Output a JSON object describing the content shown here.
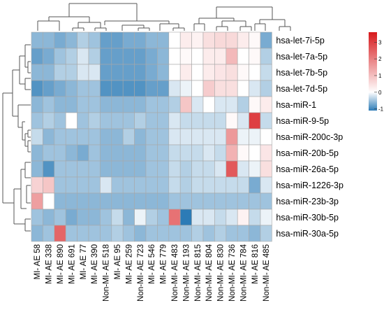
{
  "chart_data": {
    "type": "heatmap",
    "columns": [
      "MI- AE 58",
      "MI- AE 338",
      "MI- AE 890",
      "MI- AE 691",
      "MI- AE 77",
      "MI- AE 390",
      "Non-MI- AE 518",
      "MI- AE 95",
      "MI- AE 259",
      "Non-MI- AE 723",
      "MI- AE 546",
      "MI- AE 779",
      "Non-MI- AE 483",
      "Non-MI- AE 193",
      "Non-MI- AE 815",
      "Non-MI- AE 804",
      "Non-MI- AE 830",
      "Non-MI- AE 736",
      "Non-MI- AE 784",
      "MI- AE 816",
      "Non-MI- AE 485"
    ],
    "rows": [
      "hsa-let-7i-5p",
      "hsa-let-7a-5p",
      "hsa-let-7b-5p",
      "hsa-let-7d-5p",
      "hsa-miR-1",
      "hsa-miR-9-5p",
      "hsa-miR-200c-3p",
      "hsa-miR-20b-5p",
      "hsa-miR-26a-5p",
      "hsa-miR-1226-3p",
      "hsa-miR-23b-3p",
      "hsa-miR-30b-5p",
      "hsa-miR-30a-5p"
    ],
    "values": [
      [
        -0.6,
        -0.6,
        -0.7,
        -0.6,
        -0.4,
        -0.5,
        -0.8,
        -0.8,
        -0.7,
        -0.7,
        -0.6,
        -0.6,
        0.0,
        0.3,
        0.2,
        0.5,
        0.6,
        0.6,
        0.3,
        0.1,
        -0.7
      ],
      [
        -0.8,
        -0.7,
        -0.5,
        -0.4,
        -0.2,
        -0.4,
        -0.8,
        -0.8,
        -0.8,
        -0.8,
        -0.7,
        -0.6,
        0.0,
        0.1,
        0.0,
        0.3,
        0.3,
        1.1,
        0.0,
        0.1,
        -0.4
      ],
      [
        -0.6,
        -0.6,
        -0.4,
        -0.4,
        -0.2,
        -0.2,
        -0.8,
        -0.8,
        -0.8,
        -0.8,
        -0.7,
        -0.6,
        0.0,
        0.3,
        0.0,
        0.3,
        0.4,
        0.5,
        0.1,
        0.0,
        -0.3
      ],
      [
        -0.9,
        -0.8,
        -0.7,
        -0.6,
        -0.5,
        -0.5,
        -0.9,
        -0.9,
        -0.9,
        -0.9,
        -0.8,
        -0.8,
        -0.2,
        -0.1,
        0.0,
        0.8,
        0.5,
        0.5,
        0.0,
        -0.2,
        -0.4
      ],
      [
        -0.6,
        -0.5,
        -0.6,
        -0.6,
        -0.5,
        -0.5,
        -0.6,
        -0.6,
        -0.6,
        -0.6,
        -0.5,
        -0.5,
        -0.4,
        0.9,
        -0.2,
        0.0,
        -0.2,
        -0.2,
        -0.4,
        0.1,
        0.3
      ],
      [
        -0.5,
        -0.4,
        -0.5,
        0.0,
        -0.5,
        -0.4,
        -0.5,
        -0.5,
        -0.5,
        -0.4,
        -0.5,
        -0.5,
        -0.2,
        -0.3,
        -0.3,
        -0.3,
        -0.3,
        0.1,
        -0.2,
        3.0,
        -0.3
      ],
      [
        -0.3,
        -0.6,
        -0.5,
        -0.5,
        -0.5,
        -0.5,
        -0.6,
        -0.6,
        -0.4,
        -0.6,
        -0.5,
        -0.5,
        -0.2,
        -0.2,
        -0.2,
        -0.2,
        -0.2,
        1.6,
        -0.1,
        -0.1,
        0.0
      ],
      [
        -0.6,
        -0.5,
        -0.5,
        -0.6,
        -0.7,
        -0.5,
        -0.6,
        -0.6,
        -0.6,
        -0.6,
        -0.5,
        -0.5,
        -0.3,
        -0.3,
        -0.3,
        -0.2,
        -0.3,
        1.2,
        0.1,
        0.0,
        0.4
      ],
      [
        -0.6,
        -0.9,
        -0.5,
        -0.5,
        -0.5,
        -0.5,
        -0.6,
        -0.6,
        -0.6,
        -0.6,
        -0.5,
        -0.5,
        -0.3,
        -0.4,
        -0.3,
        -0.3,
        -0.2,
        2.6,
        -0.2,
        -0.1,
        0.5
      ],
      [
        0.7,
        0.9,
        -0.5,
        -0.5,
        -0.5,
        -0.5,
        -0.2,
        -0.5,
        -0.5,
        -0.5,
        -0.5,
        -0.5,
        -0.3,
        -0.4,
        -0.3,
        -0.3,
        -0.3,
        -0.3,
        -0.3,
        -0.7,
        -0.2
      ],
      [
        1.5,
        0.0,
        -0.6,
        -0.6,
        -0.6,
        -0.6,
        -0.6,
        -0.6,
        -0.6,
        -0.6,
        -0.6,
        -0.6,
        -0.5,
        -0.5,
        -0.5,
        -0.5,
        -0.5,
        -0.5,
        -0.5,
        -0.5,
        -0.5
      ],
      [
        -0.5,
        -0.6,
        -0.5,
        -0.7,
        -0.6,
        -0.6,
        -0.5,
        -0.3,
        -0.6,
        -0.1,
        -0.4,
        -0.5,
        2.2,
        -1.1,
        -0.2,
        -0.2,
        -0.3,
        -0.2,
        0.2,
        -0.3,
        -0.1
      ],
      [
        -0.6,
        -0.5,
        2.4,
        -0.5,
        -0.5,
        -0.5,
        -0.5,
        -0.4,
        -0.5,
        -0.6,
        -0.5,
        -0.5,
        -0.5,
        -0.5,
        -0.4,
        -0.5,
        -0.4,
        -0.5,
        -0.5,
        -0.6,
        -0.4
      ]
    ],
    "color_scale": {
      "min": -1.1,
      "max": 3.6,
      "low": "#2c7bb6",
      "mid": "#ffffff",
      "high": "#d7191c",
      "midpoint": 0
    },
    "legend_ticks": [
      3,
      2,
      1,
      0,
      -1
    ],
    "legend_placement": "top-right",
    "dendrograms": "rows-left, columns-top",
    "grid": true
  }
}
